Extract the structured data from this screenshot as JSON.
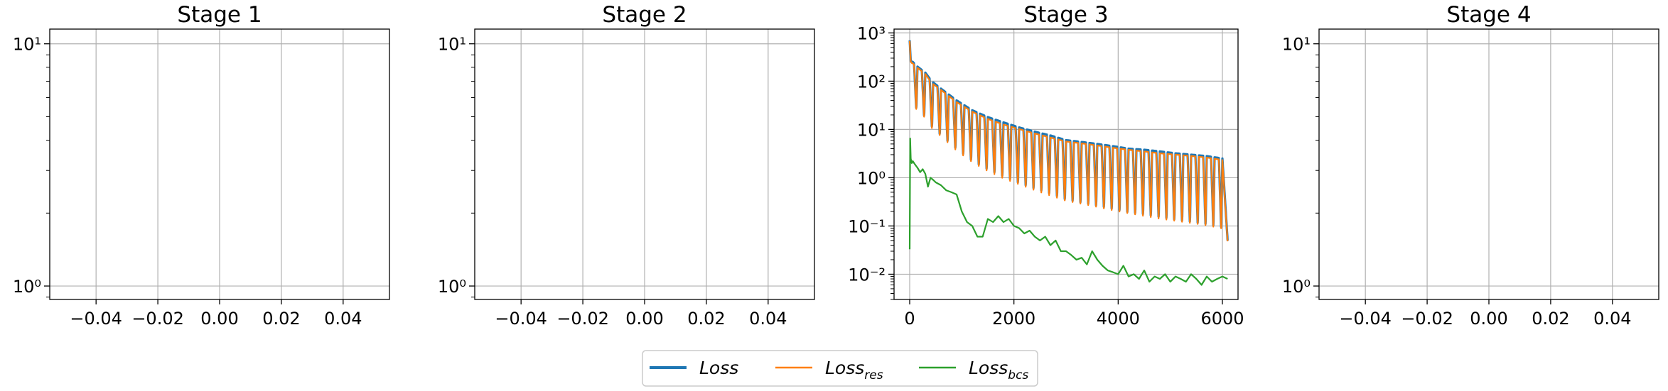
{
  "chart_data": [
    {
      "type": "line",
      "title": "Stage 1",
      "yscale": "log",
      "xlim": [
        -0.055,
        0.055
      ],
      "ylim": [
        0.88,
        11.5
      ],
      "xticks": [
        -0.04,
        -0.02,
        0.0,
        0.02,
        0.04
      ],
      "xtick_labels": [
        "−0.04",
        "−0.02",
        "0.00",
        "0.02",
        "0.04"
      ],
      "yticks": [
        1,
        10
      ],
      "grid": true,
      "series": []
    },
    {
      "type": "line",
      "title": "Stage 2",
      "yscale": "log",
      "xlim": [
        -0.055,
        0.055
      ],
      "ylim": [
        0.88,
        11.5
      ],
      "xticks": [
        -0.04,
        -0.02,
        0.0,
        0.02,
        0.04
      ],
      "xtick_labels": [
        "−0.04",
        "−0.02",
        "0.00",
        "0.02",
        "0.04"
      ],
      "yticks": [
        1,
        10
      ],
      "grid": true,
      "series": []
    },
    {
      "type": "line",
      "title": "Stage 3",
      "yscale": "log",
      "xlim": [
        -300,
        6300
      ],
      "ylim": [
        0.003,
        1200
      ],
      "xticks": [
        0,
        2000,
        4000,
        6000
      ],
      "xtick_labels": [
        "0",
        "2000",
        "4000",
        "6000"
      ],
      "yticks": [
        0.01,
        0.1,
        1,
        10,
        100,
        1000
      ],
      "grid": true,
      "series": [
        {
          "name": "Loss",
          "color": "#1f77b4",
          "x": [
            0,
            20,
            60,
            150,
            300,
            420,
            600,
            900,
            1200,
            1500,
            1800,
            2100,
            2400,
            2700,
            3000,
            3300,
            3600,
            3900,
            4200,
            4500,
            4800,
            5100,
            5400,
            5700,
            6000,
            6100
          ],
          "y": [
            700,
            260,
            250,
            200,
            150,
            100,
            70,
            40,
            25,
            18,
            14,
            11,
            9,
            7.5,
            6,
            5.5,
            5,
            4.5,
            4,
            3.8,
            3.5,
            3.2,
            3,
            2.8,
            2.5,
            0.05
          ]
        },
        {
          "name": "Loss_res",
          "color": "#ff7f0e",
          "x": [
            0,
            20,
            60,
            150,
            300,
            420,
            600,
            900,
            1200,
            1500,
            1800,
            2100,
            2400,
            2700,
            3000,
            3300,
            3600,
            3900,
            4200,
            4500,
            4800,
            5100,
            5400,
            5700,
            6000,
            6100
          ],
          "y": [
            680,
            250,
            240,
            195,
            145,
            95,
            68,
            38,
            24,
            17,
            13,
            10.5,
            8.5,
            7,
            5.8,
            5.3,
            4.8,
            4.3,
            3.9,
            3.6,
            3.3,
            3.1,
            2.9,
            2.7,
            2.4,
            0.048
          ]
        },
        {
          "name": "Loss_bcs",
          "color": "#2ca02c",
          "x": [
            0,
            10,
            20,
            40,
            60,
            100,
            150,
            200,
            250,
            300,
            350,
            400,
            450,
            500,
            600,
            700,
            800,
            900,
            1000,
            1100,
            1200,
            1300,
            1400,
            1500,
            1600,
            1700,
            1800,
            1900,
            2000,
            2100,
            2200,
            2300,
            2400,
            2500,
            2600,
            2700,
            2800,
            2900,
            3000,
            3100,
            3200,
            3300,
            3400,
            3500,
            3600,
            3700,
            3800,
            3900,
            4000,
            4100,
            4200,
            4300,
            4400,
            4500,
            4600,
            4700,
            4800,
            4900,
            5000,
            5100,
            5200,
            5300,
            5400,
            5500,
            5600,
            5700,
            5800,
            5900,
            6000,
            6100
          ],
          "y": [
            0.033,
            6.5,
            2.5,
            2.0,
            2.2,
            1.9,
            1.6,
            1.3,
            1.5,
            1.2,
            0.65,
            1.0,
            0.9,
            0.8,
            0.7,
            0.55,
            0.5,
            0.45,
            0.2,
            0.12,
            0.1,
            0.06,
            0.06,
            0.14,
            0.12,
            0.16,
            0.12,
            0.14,
            0.1,
            0.09,
            0.07,
            0.08,
            0.06,
            0.05,
            0.06,
            0.04,
            0.05,
            0.03,
            0.03,
            0.025,
            0.02,
            0.022,
            0.016,
            0.03,
            0.02,
            0.015,
            0.012,
            0.011,
            0.01,
            0.015,
            0.009,
            0.01,
            0.008,
            0.012,
            0.007,
            0.009,
            0.008,
            0.01,
            0.007,
            0.009,
            0.008,
            0.007,
            0.01,
            0.008,
            0.006,
            0.009,
            0.007,
            0.008,
            0.009,
            0.008
          ]
        }
      ]
    },
    {
      "type": "line",
      "title": "Stage 4",
      "yscale": "log",
      "xlim": [
        -0.055,
        0.055
      ],
      "ylim": [
        0.88,
        11.5
      ],
      "xticks": [
        -0.04,
        -0.02,
        0.0,
        0.02,
        0.04
      ],
      "xtick_labels": [
        "−0.04",
        "−0.02",
        "0.00",
        "0.02",
        "0.04"
      ],
      "yticks": [
        1,
        10
      ],
      "grid": true,
      "series": []
    }
  ],
  "legend": {
    "placement": "bottom-center",
    "entries": [
      {
        "label": "Loss",
        "sub": "",
        "color": "#1f77b4",
        "thick": true
      },
      {
        "label": "Loss",
        "sub": "res",
        "color": "#ff7f0e",
        "thick": false
      },
      {
        "label": "Loss",
        "sub": "bcs",
        "color": "#2ca02c",
        "thick": false
      }
    ]
  }
}
